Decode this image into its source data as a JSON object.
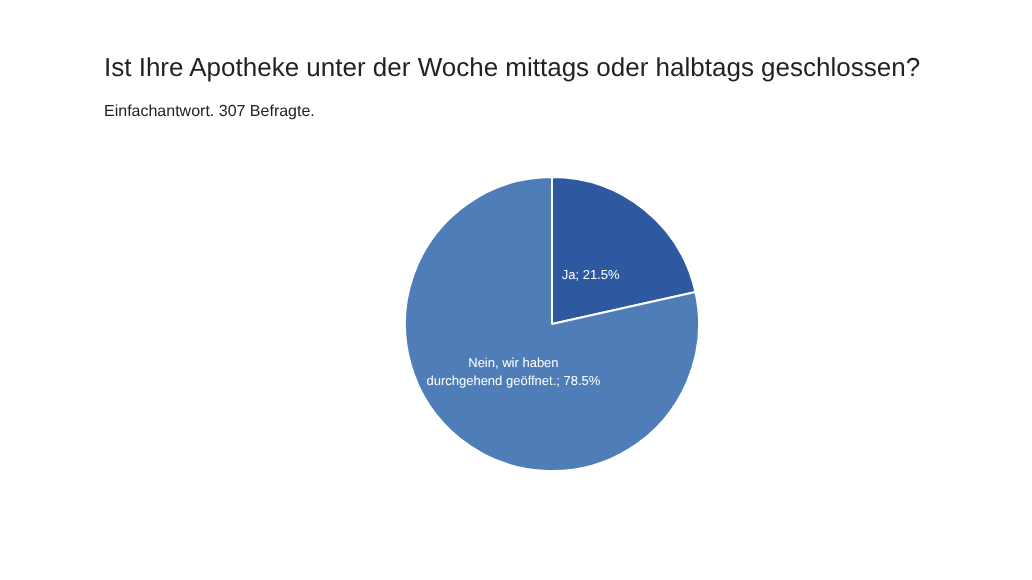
{
  "chart_data": {
    "type": "pie",
    "title": "Ist Ihre Apotheke unter der Woche mittags oder halbtags geschlossen?",
    "subtitle": "Einfachantwort. 307 Befragte.",
    "categories": [
      "Ja",
      "Nein, wir haben durchgehend geöffnet."
    ],
    "values": [
      21.5,
      78.5
    ],
    "value_labels": [
      "21.5%",
      "78.5%"
    ],
    "colors": [
      "#2e59a0",
      "#4f7db8"
    ],
    "legend": false
  }
}
